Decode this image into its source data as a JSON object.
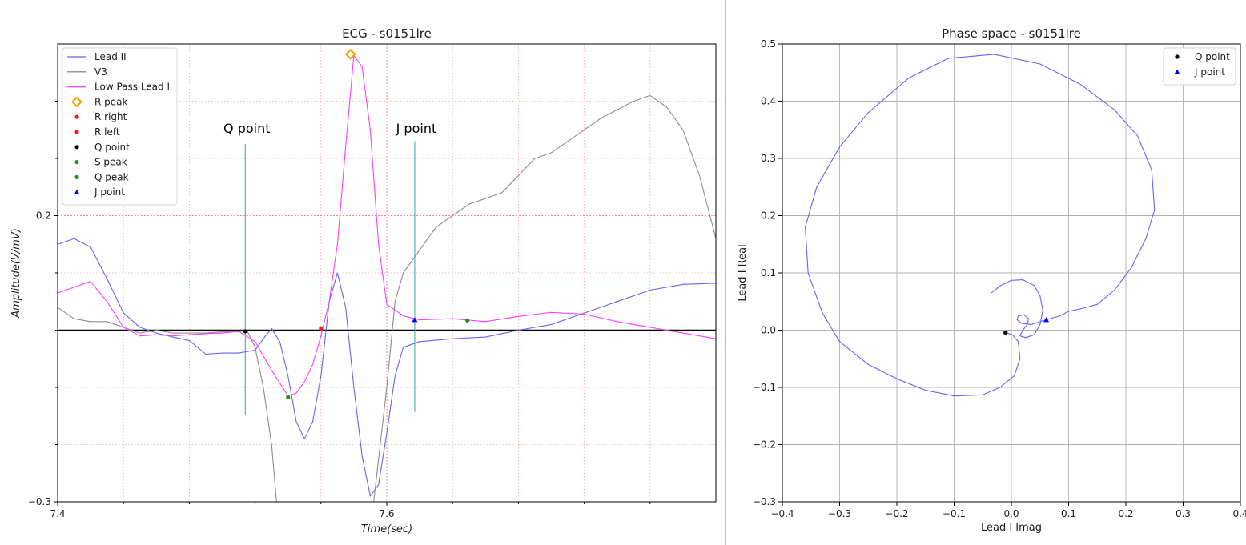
{
  "chart_data": [
    {
      "type": "line",
      "title": "ECG - s0151lre",
      "xlabel": "Time(sec)",
      "ylabel": "Amplitude(V/mV)",
      "xlim": [
        7.4,
        7.8
      ],
      "ylim": [
        -0.3,
        0.5
      ],
      "x_ticks": [
        {
          "value": 7.4,
          "label": "7.4"
        },
        {
          "value": 7.6,
          "label": "7.6"
        }
      ],
      "y_ticks": [
        {
          "value": -0.3,
          "label": "−0.3"
        },
        {
          "value": 0.2,
          "label": "0.2"
        }
      ],
      "grid": "dotted-red",
      "legend_position": "top-left",
      "series": [
        {
          "name": "Lead II",
          "color": "#6464f5",
          "points": [
            [
              7.4,
              0.15
            ],
            [
              7.41,
              0.16
            ],
            [
              7.42,
              0.145
            ],
            [
              7.43,
              0.09
            ],
            [
              7.44,
              0.03
            ],
            [
              7.45,
              0.005
            ],
            [
              7.46,
              -0.005
            ],
            [
              7.47,
              -0.012
            ],
            [
              7.48,
              -0.018
            ],
            [
              7.49,
              -0.042
            ],
            [
              7.5,
              -0.04
            ],
            [
              7.51,
              -0.04
            ],
            [
              7.52,
              -0.035
            ],
            [
              7.525,
              -0.015
            ],
            [
              7.53,
              0.003
            ],
            [
              7.535,
              -0.02
            ],
            [
              7.54,
              -0.08
            ],
            [
              7.545,
              -0.16
            ],
            [
              7.55,
              -0.19
            ],
            [
              7.555,
              -0.16
            ],
            [
              7.56,
              -0.08
            ],
            [
              7.565,
              0.05
            ],
            [
              7.57,
              0.1
            ],
            [
              7.575,
              0.04
            ],
            [
              7.58,
              -0.1
            ],
            [
              7.585,
              -0.22
            ],
            [
              7.59,
              -0.29
            ],
            [
              7.595,
              -0.27
            ],
            [
              7.6,
              -0.18
            ],
            [
              7.605,
              -0.08
            ],
            [
              7.61,
              -0.03
            ],
            [
              7.62,
              -0.02
            ],
            [
              7.64,
              -0.015
            ],
            [
              7.66,
              -0.012
            ],
            [
              7.68,
              0.0
            ],
            [
              7.7,
              0.01
            ],
            [
              7.72,
              0.03
            ],
            [
              7.74,
              0.05
            ],
            [
              7.76,
              0.07
            ],
            [
              7.78,
              0.08
            ],
            [
              7.8,
              0.082
            ]
          ]
        },
        {
          "name": "V3",
          "color": "#8c8c8c",
          "points": [
            [
              7.4,
              0.04
            ],
            [
              7.41,
              0.02
            ],
            [
              7.42,
              0.015
            ],
            [
              7.43,
              0.015
            ],
            [
              7.44,
              0.005
            ],
            [
              7.45,
              -0.005
            ],
            [
              7.46,
              0.0
            ],
            [
              7.47,
              -0.005
            ],
            [
              7.48,
              -0.005
            ],
            [
              7.49,
              -0.005
            ],
            [
              7.5,
              -0.003
            ],
            [
              7.51,
              -0.003
            ],
            [
              7.515,
              0.0
            ],
            [
              7.52,
              -0.03
            ],
            [
              7.525,
              -0.1
            ],
            [
              7.53,
              -0.2
            ],
            [
              7.533,
              -0.3
            ]
          ]
        },
        {
          "name": "V3",
          "color": "#8c8c8c",
          "show_in_legend": false,
          "points": [
            [
              7.592,
              -0.3
            ],
            [
              7.6,
              -0.1
            ],
            [
              7.605,
              0.05
            ],
            [
              7.61,
              0.1
            ],
            [
              7.62,
              0.14
            ],
            [
              7.63,
              0.18
            ],
            [
              7.64,
              0.2
            ],
            [
              7.65,
              0.22
            ],
            [
              7.66,
              0.23
            ],
            [
              7.67,
              0.24
            ],
            [
              7.68,
              0.27
            ],
            [
              7.69,
              0.3
            ],
            [
              7.7,
              0.31
            ],
            [
              7.71,
              0.33
            ],
            [
              7.72,
              0.35
            ],
            [
              7.73,
              0.37
            ],
            [
              7.74,
              0.385
            ],
            [
              7.75,
              0.4
            ],
            [
              7.76,
              0.41
            ],
            [
              7.77,
              0.39
            ],
            [
              7.78,
              0.35
            ],
            [
              7.79,
              0.27
            ],
            [
              7.8,
              0.16
            ]
          ]
        },
        {
          "name": "Low Pass Lead I",
          "color": "#ff3cff",
          "points": [
            [
              7.4,
              0.065
            ],
            [
              7.41,
              0.075
            ],
            [
              7.42,
              0.085
            ],
            [
              7.43,
              0.05
            ],
            [
              7.44,
              0.005
            ],
            [
              7.45,
              -0.01
            ],
            [
              7.46,
              -0.008
            ],
            [
              7.47,
              -0.01
            ],
            [
              7.48,
              -0.008
            ],
            [
              7.49,
              -0.006
            ],
            [
              7.5,
              -0.005
            ],
            [
              7.51,
              -0.002
            ],
            [
              7.52,
              -0.02
            ],
            [
              7.53,
              -0.07
            ],
            [
              7.54,
              -0.115
            ],
            [
              7.545,
              -0.11
            ],
            [
              7.55,
              -0.09
            ],
            [
              7.555,
              -0.06
            ],
            [
              7.56,
              -0.01
            ],
            [
              7.565,
              0.05
            ],
            [
              7.57,
              0.15
            ],
            [
              7.575,
              0.32
            ],
            [
              7.58,
              0.48
            ],
            [
              7.585,
              0.46
            ],
            [
              7.59,
              0.35
            ],
            [
              7.595,
              0.15
            ],
            [
              7.6,
              0.045
            ],
            [
              7.61,
              0.025
            ],
            [
              7.62,
              0.018
            ],
            [
              7.64,
              0.02
            ],
            [
              7.66,
              0.015
            ],
            [
              7.68,
              0.024
            ],
            [
              7.7,
              0.031
            ],
            [
              7.72,
              0.028
            ],
            [
              7.74,
              0.015
            ],
            [
              7.76,
              0.005
            ],
            [
              7.78,
              -0.005
            ],
            [
              7.8,
              -0.015
            ]
          ]
        }
      ],
      "markers": [
        {
          "name": "R peak",
          "color": "#f5a000",
          "symbol": "diamond",
          "x": 7.578,
          "y": 0.482
        },
        {
          "name": "R right",
          "color": "#e61e1e",
          "symbol": "dot",
          "x": null,
          "y": null
        },
        {
          "name": "R left",
          "color": "#e61e1e",
          "symbol": "dot",
          "x": 7.56,
          "y": 0.003
        },
        {
          "name": "Q point",
          "color": "#000000",
          "symbol": "dot",
          "x": 7.514,
          "y": -0.002
        },
        {
          "name": "S peak",
          "color": "#1e961e",
          "symbol": "dot",
          "x": 7.649,
          "y": 0.017
        },
        {
          "name": "Q peak",
          "color": "#1e961e",
          "symbol": "dot",
          "x": 7.54,
          "y": -0.117
        },
        {
          "name": "J point",
          "color": "#0000ff",
          "symbol": "triangle",
          "x": 7.617,
          "y": 0.018
        }
      ],
      "zero_line": {
        "y": 0.0,
        "color": "#000000"
      },
      "annotations": [
        {
          "text": "Q point",
          "x": 7.514,
          "y": 0.345,
          "line_y": [
            0.325,
            -0.148
          ]
        },
        {
          "text": "J point",
          "x": 7.617,
          "y": 0.345,
          "line_y": [
            0.33,
            -0.143
          ]
        }
      ]
    },
    {
      "type": "line",
      "title": "Phase space - s0151lre",
      "xlabel": "Lead I Imag",
      "ylabel": "Lead I Real",
      "xlim": [
        -0.4,
        0.4
      ],
      "ylim": [
        -0.3,
        0.5
      ],
      "x_ticks": [
        {
          "value": -0.4,
          "label": "−0.4"
        },
        {
          "value": -0.3,
          "label": "−0.3"
        },
        {
          "value": -0.2,
          "label": "−0.2"
        },
        {
          "value": -0.1,
          "label": "−0.1"
        },
        {
          "value": 0.0,
          "label": "0.0"
        },
        {
          "value": 0.1,
          "label": "0.1"
        },
        {
          "value": 0.2,
          "label": "0.2"
        },
        {
          "value": 0.3,
          "label": "0.3"
        },
        {
          "value": 0.4,
          "label": "0.4"
        }
      ],
      "y_ticks": [
        {
          "value": -0.3,
          "label": "−0.3"
        },
        {
          "value": -0.2,
          "label": "−0.2"
        },
        {
          "value": -0.1,
          "label": "−0.1"
        },
        {
          "value": 0.0,
          "label": "0.0"
        },
        {
          "value": 0.1,
          "label": "0.1"
        },
        {
          "value": 0.2,
          "label": "0.2"
        },
        {
          "value": 0.3,
          "label": "0.3"
        },
        {
          "value": 0.4,
          "label": "0.4"
        },
        {
          "value": 0.5,
          "label": "0.5"
        }
      ],
      "grid": "solid-gray",
      "legend_position": "top-right",
      "series": [
        {
          "name": "",
          "color": "#6464f5",
          "points": [
            [
              -0.035,
              0.065
            ],
            [
              -0.02,
              0.077
            ],
            [
              0.0,
              0.087
            ],
            [
              0.02,
              0.088
            ],
            [
              0.04,
              0.078
            ],
            [
              0.05,
              0.06
            ],
            [
              0.055,
              0.035
            ],
            [
              0.05,
              0.01
            ],
            [
              0.04,
              -0.008
            ],
            [
              0.025,
              -0.013
            ],
            [
              0.015,
              -0.01
            ],
            [
              0.02,
              0.0
            ],
            [
              0.028,
              0.01
            ],
            [
              0.03,
              0.02
            ],
            [
              0.022,
              0.027
            ],
            [
              0.012,
              0.025
            ],
            [
              0.01,
              0.018
            ],
            [
              0.018,
              0.012
            ],
            [
              0.035,
              0.01
            ],
            [
              0.06,
              0.018
            ],
            [
              0.085,
              0.025
            ],
            [
              0.1,
              0.033
            ],
            [
              0.12,
              0.037
            ],
            [
              0.15,
              0.045
            ],
            [
              0.18,
              0.07
            ],
            [
              0.21,
              0.11
            ],
            [
              0.235,
              0.16
            ],
            [
              0.25,
              0.21
            ],
            [
              0.245,
              0.28
            ],
            [
              0.22,
              0.34
            ],
            [
              0.18,
              0.385
            ],
            [
              0.12,
              0.43
            ],
            [
              0.05,
              0.465
            ],
            [
              -0.03,
              0.482
            ],
            [
              -0.11,
              0.475
            ],
            [
              -0.18,
              0.44
            ],
            [
              -0.25,
              0.38
            ],
            [
              -0.3,
              0.32
            ],
            [
              -0.34,
              0.25
            ],
            [
              -0.36,
              0.18
            ],
            [
              -0.355,
              0.1
            ],
            [
              -0.33,
              0.03
            ],
            [
              -0.3,
              -0.02
            ],
            [
              -0.25,
              -0.06
            ],
            [
              -0.2,
              -0.085
            ],
            [
              -0.15,
              -0.105
            ],
            [
              -0.1,
              -0.115
            ],
            [
              -0.05,
              -0.113
            ],
            [
              -0.02,
              -0.1
            ],
            [
              0.005,
              -0.08
            ],
            [
              0.015,
              -0.05
            ],
            [
              0.012,
              -0.02
            ],
            [
              0.002,
              -0.008
            ],
            [
              -0.008,
              -0.005
            ],
            [
              -0.015,
              -0.007
            ],
            [
              -0.012,
              -0.002
            ],
            [
              -0.01,
              -0.005
            ]
          ]
        }
      ],
      "markers": [
        {
          "name": "Q point",
          "color": "#000000",
          "symbol": "dot",
          "x": -0.01,
          "y": -0.004
        },
        {
          "name": "J point",
          "color": "#0000ff",
          "symbol": "triangle",
          "x": 0.061,
          "y": 0.018
        }
      ]
    }
  ]
}
